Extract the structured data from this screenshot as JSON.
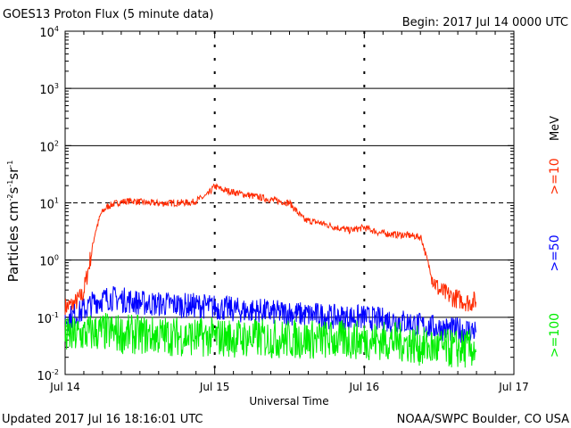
{
  "header": {
    "title": "GOES13 Proton Flux (5 minute data)",
    "begin": "Begin: 2017 Jul 14 0000 UTC"
  },
  "footer": {
    "updated": "Updated 2017 Jul 16 18:16:01 UTC",
    "credit": "NOAA/SWPC Boulder, CO USA"
  },
  "axes": {
    "xlabel": "Universal Time",
    "ylabel_prefix": "Particles cm",
    "right_unit": "MeV",
    "xticks": [
      "Jul 14",
      "Jul 15",
      "Jul 16",
      "Jul 17"
    ],
    "ytick_bases": [
      "10",
      "10",
      "10",
      "10",
      "10",
      "10",
      "10"
    ],
    "ytick_exps": [
      "4",
      "3",
      "2",
      "1",
      "0",
      "-1",
      "-2"
    ]
  },
  "legend": [
    {
      "label": ">=10",
      "color": "#ff2a00"
    },
    {
      "label": ">=50",
      "color": "#0000ff"
    },
    {
      "label": ">=100",
      "color": "#00ee00"
    }
  ],
  "chart_data": {
    "type": "line",
    "title": "GOES13 Proton Flux (5 minute data)",
    "xlabel": "Universal Time",
    "ylabel": "Particles cm-2s-1sr-1",
    "yscale": "log",
    "ylim": [
      0.01,
      10000
    ],
    "xlim": [
      "2017-07-14T00:00",
      "2017-07-17T00:00"
    ],
    "x_unit": "days since 2017 Jul 14 0000 UTC",
    "xticks": [
      "Jul 14",
      "Jul 15",
      "Jul 16",
      "Jul 17"
    ],
    "thresholds": [
      10,
      1,
      0.1
    ],
    "series": [
      {
        "name": ">=10 MeV",
        "color": "#ff2a00",
        "x": [
          0.0,
          0.06,
          0.12,
          0.16,
          0.2,
          0.24,
          0.28,
          0.32,
          0.38,
          0.45,
          0.55,
          0.65,
          0.75,
          0.85,
          0.95,
          0.98,
          1.0,
          1.05,
          1.12,
          1.2,
          1.3,
          1.4,
          1.5,
          1.55,
          1.6,
          1.7,
          1.8,
          1.9,
          2.0,
          2.1,
          2.2,
          2.3,
          2.38,
          2.42,
          2.46,
          2.5,
          2.55,
          2.6,
          2.65,
          2.7,
          2.75
        ],
        "y": [
          0.15,
          0.17,
          0.25,
          0.8,
          3.0,
          6.5,
          8.5,
          9.5,
          10.5,
          10.8,
          10.0,
          9.8,
          10.0,
          10.2,
          13.5,
          17.0,
          19.5,
          17.0,
          15.5,
          14.0,
          12.5,
          11.0,
          10.0,
          7.0,
          5.0,
          4.5,
          3.8,
          3.3,
          3.7,
          3.0,
          2.8,
          2.7,
          2.5,
          1.0,
          0.45,
          0.3,
          0.25,
          0.22,
          0.2,
          0.18,
          0.2
        ]
      },
      {
        "name": ">=50 MeV",
        "color": "#0000ff",
        "x": [
          0.0,
          0.1,
          0.2,
          0.3,
          0.4,
          0.5,
          0.6,
          0.7,
          0.8,
          0.9,
          1.0,
          1.1,
          1.2,
          1.3,
          1.4,
          1.5,
          1.6,
          1.7,
          1.8,
          1.9,
          2.0,
          2.1,
          2.2,
          2.3,
          2.4,
          2.5,
          2.6,
          2.7,
          2.75
        ],
        "y": [
          0.09,
          0.12,
          0.19,
          0.22,
          0.2,
          0.18,
          0.17,
          0.17,
          0.16,
          0.16,
          0.15,
          0.14,
          0.13,
          0.13,
          0.12,
          0.12,
          0.11,
          0.11,
          0.1,
          0.1,
          0.1,
          0.09,
          0.09,
          0.08,
          0.07,
          0.065,
          0.06,
          0.06,
          0.058
        ]
      },
      {
        "name": ">=100 MeV",
        "color": "#00ee00",
        "x": [
          0.0,
          0.1,
          0.2,
          0.3,
          0.4,
          0.5,
          0.6,
          0.7,
          0.8,
          0.9,
          1.0,
          1.1,
          1.2,
          1.3,
          1.4,
          1.5,
          1.6,
          1.7,
          1.8,
          1.9,
          2.0,
          2.1,
          2.2,
          2.3,
          2.4,
          2.5,
          2.6,
          2.7,
          2.75
        ],
        "y": [
          0.045,
          0.05,
          0.055,
          0.055,
          0.05,
          0.05,
          0.048,
          0.047,
          0.046,
          0.045,
          0.045,
          0.044,
          0.043,
          0.043,
          0.042,
          0.042,
          0.041,
          0.041,
          0.04,
          0.04,
          0.04,
          0.039,
          0.038,
          0.035,
          0.03,
          0.029,
          0.028,
          0.028,
          0.028
        ]
      }
    ]
  }
}
